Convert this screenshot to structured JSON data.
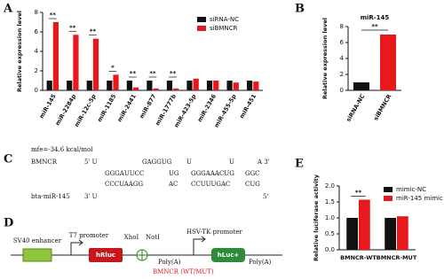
{
  "chart_data": [
    {
      "type": "bar",
      "panel": "A",
      "ylabel": "Relative expression level",
      "categories": [
        "miR-145",
        "miR-2284p",
        "miR-12c-5p",
        "miR-1185",
        "miR-2441",
        "miR-877",
        "miR-1777b",
        "miR-423-5p",
        "miR-2346",
        "miR-455-5p",
        "miR-451"
      ],
      "series": [
        {
          "name": "siRNA-NC",
          "color": "#111111",
          "values": [
            1.0,
            1.0,
            1.0,
            1.0,
            1.0,
            1.0,
            1.0,
            1.0,
            1.0,
            1.0,
            1.0
          ]
        },
        {
          "name": "siBMNCR",
          "color": "#e8191c",
          "values": [
            7.0,
            5.7,
            5.3,
            1.6,
            0.3,
            0.2,
            0.2,
            1.2,
            1.0,
            0.8,
            0.9
          ]
        }
      ],
      "significance": [
        "**",
        "**",
        "**",
        "*",
        "**",
        "**",
        "**",
        null,
        null,
        null,
        null
      ],
      "ylim": [
        0,
        8
      ],
      "yticks": [
        0,
        2,
        4,
        6,
        8
      ]
    },
    {
      "type": "bar",
      "panel": "B",
      "title": "miR-145",
      "ylabel": "Relative expression level",
      "categories": [
        "siRNA-NC",
        "siBMNCR"
      ],
      "values": [
        1.0,
        7.0
      ],
      "colors": [
        "#111111",
        "#e8191c"
      ],
      "significance": "**",
      "ylim": [
        0,
        8
      ],
      "yticks": [
        0,
        2,
        4,
        6,
        8
      ]
    },
    {
      "type": "bar",
      "panel": "E",
      "ylabel": "Relative luciferase activity",
      "categories": [
        "BMNCR-WT",
        "BMNCR-MUT"
      ],
      "series": [
        {
          "name": "mimic-NC",
          "color": "#111111",
          "values": [
            1.0,
            1.0
          ]
        },
        {
          "name": "miR-145 mimic",
          "color": "#e8191c",
          "values": [
            1.57,
            1.05
          ]
        }
      ],
      "significance": [
        "**",
        null
      ],
      "ylim": [
        0,
        2
      ],
      "yticks": [
        {
          "value": 0,
          "label": "0.0"
        },
        {
          "value": 0.5,
          "label": "0.5"
        },
        {
          "value": 1,
          "label": "1.0"
        },
        {
          "value": 1.5,
          "label": "1.5"
        },
        {
          "value": 2,
          "label": "2.0"
        }
      ]
    }
  ],
  "binding": {
    "panel": "C",
    "mfe": "mfe=-34.6 kcal/mol",
    "rna_label": "BMNCR",
    "mirna_label": "bta-miR-145",
    "rows": [
      [
        "5' U",
        "GAGGUG",
        "U",
        "U",
        "A 3'"
      ],
      [
        "GGGAUUCC",
        "UG",
        "GGGAAACUG",
        "GGC"
      ],
      [
        "CCCUAAGG",
        "AC",
        "CCUUUGAC",
        "CUG"
      ],
      [
        "3' U",
        "5'"
      ]
    ]
  },
  "construct": {
    "panel": "D",
    "sv40": "SV40 enhancer",
    "t7": "T7 promoter",
    "hrluc": "hRluc",
    "xhoi": "XhoI",
    "noti": "NotI",
    "polya1": "Poly(A)",
    "insert": "BMNCR (WT/MUT)",
    "hsvtk": "HSV-TK promoter",
    "hluc": "hLuc+",
    "polya2": "Poly(A)"
  }
}
